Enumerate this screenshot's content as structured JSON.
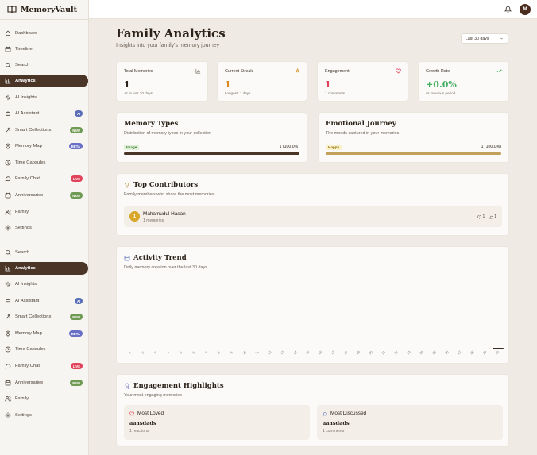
{
  "app": {
    "name": "MemoryVault",
    "avatar_initial": "M"
  },
  "sidebar": {
    "items": [
      {
        "label": "Dashboard",
        "icon": "home-icon"
      },
      {
        "label": "Timeline",
        "icon": "calendar-icon"
      },
      {
        "label": "Search",
        "icon": "search-icon"
      },
      {
        "label": "Analytics",
        "icon": "bar-chart-icon",
        "active": true
      },
      {
        "label": "AI Insights",
        "icon": "sparkle-icon"
      },
      {
        "label": "AI Assistant",
        "icon": "bot-icon",
        "badge": "AI"
      },
      {
        "label": "Smart Collections",
        "icon": "wand-icon",
        "badge": "NEW"
      },
      {
        "label": "Memory Map",
        "icon": "map-pin-icon",
        "badge": "BETA"
      },
      {
        "label": "Time Capsules",
        "icon": "clock-icon"
      },
      {
        "label": "Family Chat",
        "icon": "chat-icon",
        "badge": "LIVE"
      },
      {
        "label": "Anniversaries",
        "icon": "calendar-icon",
        "badge": "NEW"
      },
      {
        "label": "Family",
        "icon": "users-icon"
      },
      {
        "label": "Settings",
        "icon": "gear-icon"
      }
    ],
    "items_repeat": [
      {
        "label": "Search",
        "icon": "search-icon"
      },
      {
        "label": "Analytics",
        "icon": "bar-chart-icon",
        "active": true
      },
      {
        "label": "AI Insights",
        "icon": "sparkle-icon"
      },
      {
        "label": "AI Assistant",
        "icon": "bot-icon",
        "badge": "AI"
      },
      {
        "label": "Smart Collections",
        "icon": "wand-icon",
        "badge": "NEW"
      },
      {
        "label": "Memory Map",
        "icon": "map-pin-icon",
        "badge": "BETA"
      },
      {
        "label": "Time Capsules",
        "icon": "clock-icon"
      },
      {
        "label": "Family Chat",
        "icon": "chat-icon",
        "badge": "LIVE"
      },
      {
        "label": "Anniversaries",
        "icon": "calendar-icon",
        "badge": "NEW"
      },
      {
        "label": "Family",
        "icon": "users-icon"
      },
      {
        "label": "Settings",
        "icon": "gear-icon"
      }
    ]
  },
  "header": {
    "title": "Family Analytics",
    "subtitle": "Insights into your family's memory journey",
    "period": "Last 30 days"
  },
  "stats": {
    "total": {
      "label": "Total Memories",
      "value": "1",
      "sub": "+1 in last 30 days",
      "icon": "bar-chart-icon"
    },
    "streak": {
      "label": "Current Streak",
      "value": "1",
      "sub": "Longest: 1 days",
      "icon": "flame-icon"
    },
    "engagement": {
      "label": "Engagement",
      "value": "1",
      "sub": "1 comments",
      "icon": "heart-icon"
    },
    "growth": {
      "label": "Growth Rate",
      "value": "+0.0%",
      "sub": "vs previous period",
      "icon": "trend-up-icon"
    }
  },
  "memory_types": {
    "title": "Memory Types",
    "subtitle": "Distribution of memory types in your collection",
    "tag": "Image",
    "count": "1 (100.0%)",
    "fraction": 1.0
  },
  "emotional": {
    "title": "Emotional Journey",
    "subtitle": "The moods captured in your memories",
    "tag": "Happy",
    "count": "1 (100.0%)",
    "fraction": 1.0
  },
  "contributors": {
    "title": "Top Contributors",
    "subtitle": "Family members who share the most memories",
    "rows": [
      {
        "rank": "1",
        "name": "Mahamudul Hasan",
        "memories": "1 memories",
        "likes": "1",
        "comments": "1"
      }
    ]
  },
  "activity": {
    "title": "Activity Trend",
    "subtitle": "Daily memory creation over the last 30 days"
  },
  "chart_data": {
    "type": "bar",
    "categories": [
      "1",
      "2",
      "3",
      "4",
      "5",
      "6",
      "7",
      "8",
      "9",
      "10",
      "11",
      "12",
      "13",
      "14",
      "15",
      "16",
      "17",
      "18",
      "19",
      "20",
      "21",
      "22",
      "23",
      "24",
      "25",
      "26",
      "27",
      "28",
      "29",
      "30"
    ],
    "values": [
      0,
      0,
      0,
      0,
      0,
      0,
      0,
      0,
      0,
      0,
      0,
      0,
      0,
      0,
      0,
      0,
      0,
      0,
      0,
      0,
      0,
      0,
      0,
      0,
      0,
      0,
      0,
      0,
      0,
      1
    ],
    "title": "",
    "xlabel": "",
    "ylabel": ""
  },
  "highlights": {
    "title": "Engagement Highlights",
    "subtitle": "Your most engaging memories",
    "loved": {
      "label": "Most Loved",
      "title": "aaasdads",
      "sub": "1 reactions"
    },
    "discussed": {
      "label": "Most Discussed",
      "title": "aaasdads",
      "sub": "1 comments"
    }
  },
  "colors": {
    "accent": "#4a3526",
    "gold": "#c2a25a",
    "streak": "#d98a1c",
    "engagement": "#e0435a",
    "growth": "#3fae5e"
  }
}
